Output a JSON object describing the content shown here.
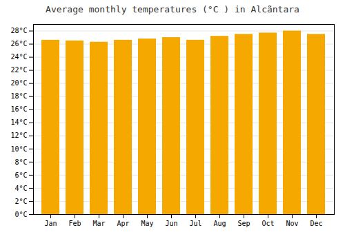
{
  "chart_data": {
    "type": "bar",
    "title": "Average monthly temperatures (°C ) in Alcãntara",
    "categories": [
      "Jan",
      "Feb",
      "Mar",
      "Apr",
      "May",
      "Jun",
      "Jul",
      "Aug",
      "Sep",
      "Oct",
      "Nov",
      "Dec"
    ],
    "values": [
      26.6,
      26.5,
      26.3,
      26.6,
      26.8,
      27.0,
      26.6,
      27.2,
      27.5,
      27.7,
      28.0,
      27.5
    ],
    "color": "#F5A800",
    "ylim": [
      0,
      29
    ],
    "yticks": [
      {
        "value": 0,
        "label": "0°C"
      },
      {
        "value": 2,
        "label": "2°C"
      },
      {
        "value": 4,
        "label": "4°C"
      },
      {
        "value": 6,
        "label": "6°C"
      },
      {
        "value": 8,
        "label": "8°C"
      },
      {
        "value": 10,
        "label": "10°C"
      },
      {
        "value": 12,
        "label": "12°C"
      },
      {
        "value": 14,
        "label": "14°C"
      },
      {
        "value": 16,
        "label": "16°C"
      },
      {
        "value": 18,
        "label": "18°C"
      },
      {
        "value": 20,
        "label": "20°C"
      },
      {
        "value": 22,
        "label": "22°C"
      },
      {
        "value": 24,
        "label": "24°C"
      },
      {
        "value": 26,
        "label": "26°C"
      },
      {
        "value": 28,
        "label": "28°C"
      }
    ],
    "grid": true
  }
}
